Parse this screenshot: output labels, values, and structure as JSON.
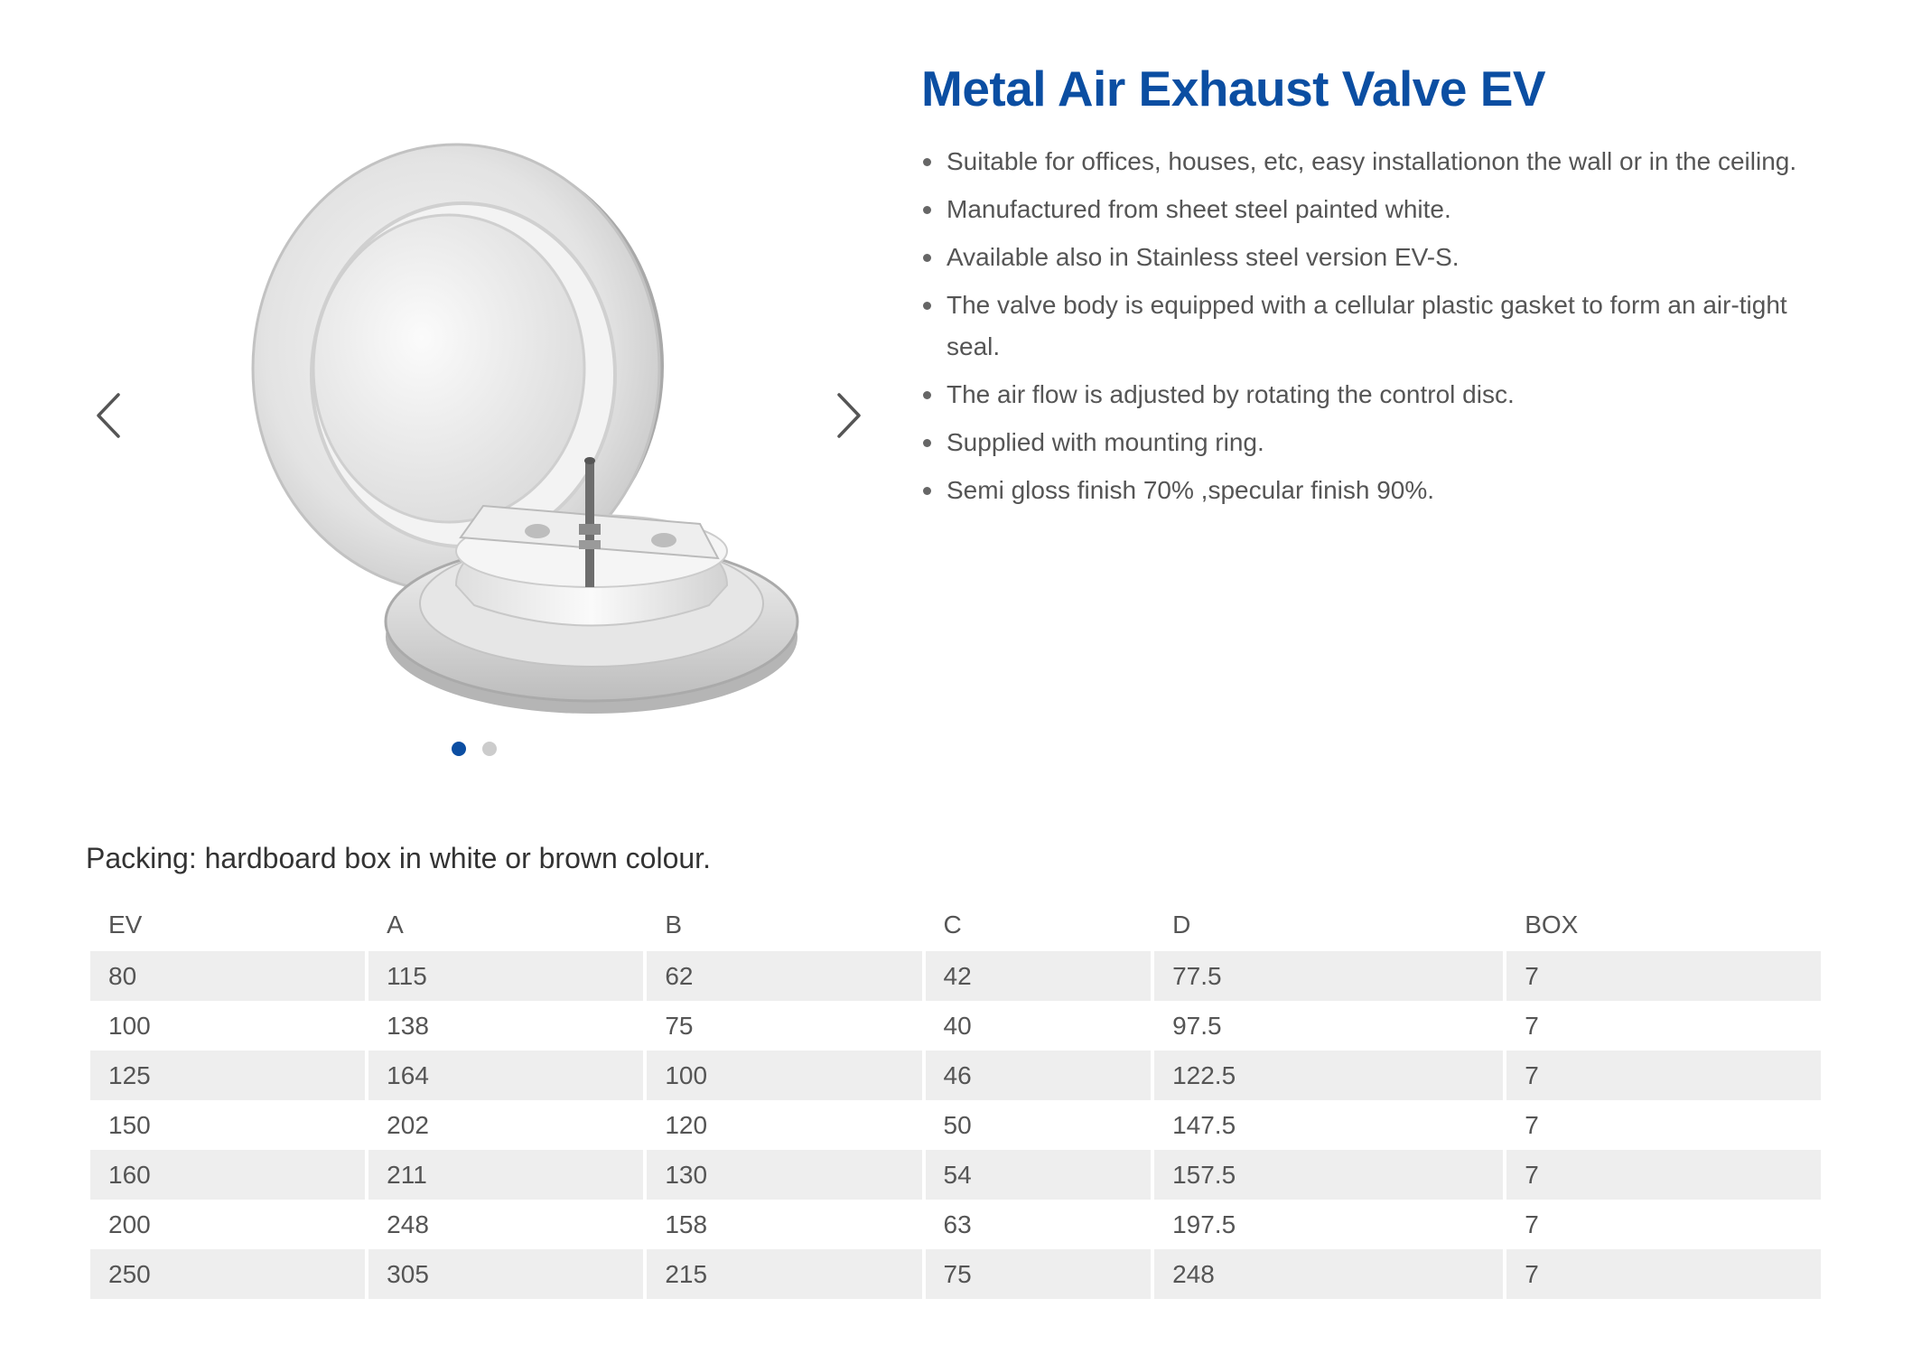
{
  "product": {
    "title": "Metal Air Exhaust Valve EV",
    "features": [
      "Suitable for offices, houses, etc, easy installationon the wall or in the ceiling.",
      "Manufactured from sheet steel painted white.",
      "Available also in Stainless steel version EV-S.",
      "The valve body is equipped with a cellular plastic gasket to form an air-tight seal.",
      "The air flow is adjusted by rotating the control disc.",
      "Supplied with mounting ring.",
      "Semi gloss finish 70% ,specular finish 90%."
    ]
  },
  "gallery": {
    "prev_icon": "chevron-left-icon",
    "next_icon": "chevron-right-icon",
    "slide_count": 2,
    "active_slide": 1
  },
  "packing": "Packing: hardboard box in white or brown colour.",
  "table": {
    "headers": [
      "EV",
      "A",
      "B",
      "C",
      "D",
      "BOX"
    ],
    "rows": [
      [
        "80",
        "115",
        "62",
        "42",
        "77.5",
        "7"
      ],
      [
        "100",
        "138",
        "75",
        "40",
        "97.5",
        "7"
      ],
      [
        "125",
        "164",
        "100",
        "46",
        "122.5",
        "7"
      ],
      [
        "150",
        "202",
        "120",
        "50",
        "147.5",
        "7"
      ],
      [
        "160",
        "211",
        "130",
        "54",
        "157.5",
        "7"
      ],
      [
        "200",
        "248",
        "158",
        "63",
        "197.5",
        "7"
      ],
      [
        "250",
        "305",
        "215",
        "75",
        "248",
        "7"
      ]
    ]
  },
  "colors": {
    "accent": "#0b4ea2",
    "row_stripe": "#eeeeee",
    "text": "#555555"
  }
}
